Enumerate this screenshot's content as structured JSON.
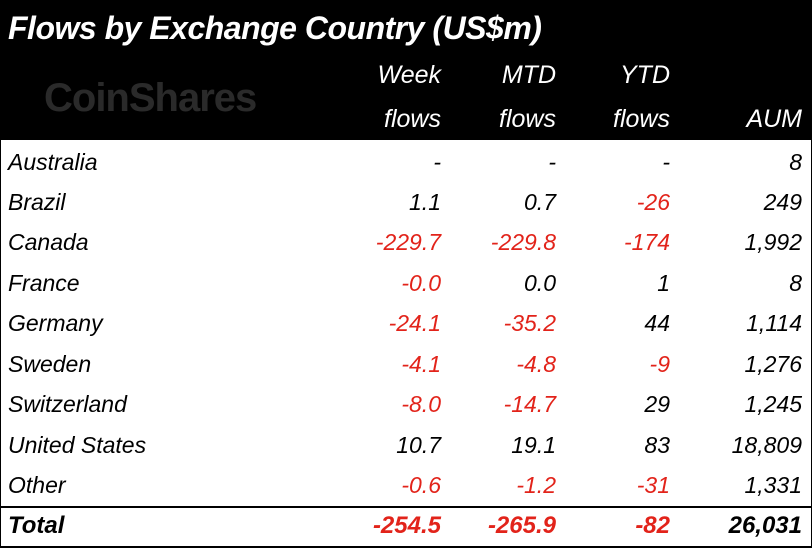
{
  "title": "Flows by Exchange Country (US$m)",
  "logo_text": "CoinShares",
  "columns": {
    "week": {
      "line1": "Week",
      "line2": "flows"
    },
    "mtd": {
      "line1": "MTD",
      "line2": "flows"
    },
    "ytd": {
      "line1": "YTD",
      "line2": "flows"
    },
    "aum": {
      "line1": "",
      "line2": "AUM"
    }
  },
  "colors": {
    "negative": "#e2231a",
    "header_bg": "#000000"
  },
  "rows": [
    {
      "country": "Australia",
      "week": "-",
      "mtd": "-",
      "ytd": "-",
      "aum": "8"
    },
    {
      "country": "Brazil",
      "week": "1.1",
      "mtd": "0.7",
      "ytd": "-26",
      "aum": "249"
    },
    {
      "country": "Canada",
      "week": "-229.7",
      "mtd": "-229.8",
      "ytd": "-174",
      "aum": "1,992"
    },
    {
      "country": "France",
      "week": "-0.0",
      "mtd": "0.0",
      "ytd": "1",
      "aum": "8"
    },
    {
      "country": "Germany",
      "week": "-24.1",
      "mtd": "-35.2",
      "ytd": "44",
      "aum": "1,114"
    },
    {
      "country": "Sweden",
      "week": "-4.1",
      "mtd": "-4.8",
      "ytd": "-9",
      "aum": "1,276"
    },
    {
      "country": "Switzerland",
      "week": "-8.0",
      "mtd": "-14.7",
      "ytd": "29",
      "aum": "1,245"
    },
    {
      "country": "United States",
      "week": "10.7",
      "mtd": "19.1",
      "ytd": "83",
      "aum": "18,809"
    },
    {
      "country": "Other",
      "week": "-0.6",
      "mtd": "-1.2",
      "ytd": "-31",
      "aum": "1,331"
    }
  ],
  "total": {
    "country": "Total",
    "week": "-254.5",
    "mtd": "-265.9",
    "ytd": "-82",
    "aum": "26,031"
  }
}
